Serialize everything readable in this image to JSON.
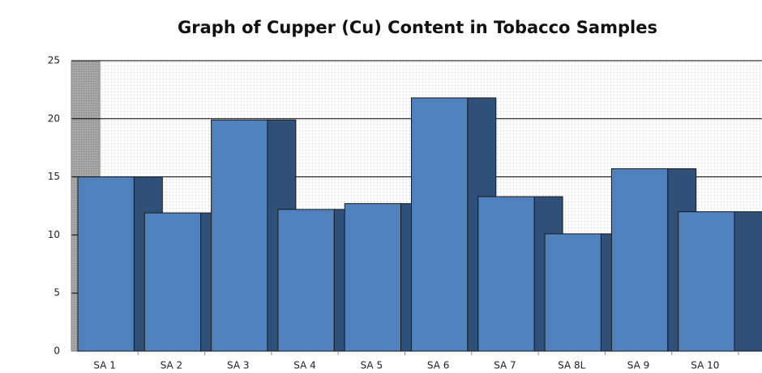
{
  "chart_data": {
    "type": "bar",
    "title": "Graph of Cupper (Cu) Content in Tobacco Samples",
    "categories": [
      "SA 1",
      "SA 2",
      "SA 3",
      "SA 4",
      "SA 5",
      "SA 6",
      "SA 7",
      "SA 8L",
      "SA 9",
      "SA 10"
    ],
    "values": [
      15,
      11.9,
      19.9,
      12.2,
      12.7,
      21.8,
      13.3,
      10.1,
      15.7,
      12
    ],
    "color": "#4f81bd",
    "ylim": [
      0,
      25
    ],
    "yticks": [
      0,
      5,
      10,
      15,
      20,
      25
    ],
    "grid": true
  }
}
